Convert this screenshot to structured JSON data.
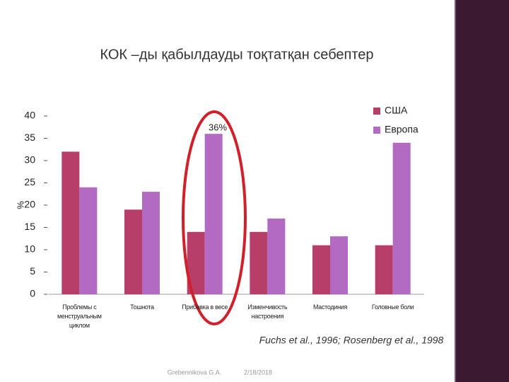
{
  "chart_data": {
    "type": "bar",
    "title": "КОК –ды қабылдауды тоқтатқан себептер",
    "y_label": "%",
    "categories": [
      "Проблемы с менструальным циклом",
      "Тошнота",
      "Прибавка в весе",
      "Изменчивость настроения",
      "Мастодиния",
      "Головные боли"
    ],
    "series": [
      {
        "name": "США",
        "color": "#b83e6a",
        "values": [
          32,
          19,
          14,
          14,
          11,
          11
        ]
      },
      {
        "name": "Европа",
        "color": "#b26ac2",
        "values": [
          24,
          23,
          36,
          17,
          13,
          34
        ]
      }
    ],
    "ylim": [
      0,
      40
    ],
    "yticks": [
      0,
      5,
      10,
      15,
      20,
      25,
      30,
      35,
      40
    ],
    "legend": "top-right",
    "annotation": "36%",
    "source": "Fuchs et al., 1996; Rosenberg et al., 1998"
  },
  "footer": {
    "author": "Grebennikova G.A.",
    "date": "2/18/2018"
  }
}
